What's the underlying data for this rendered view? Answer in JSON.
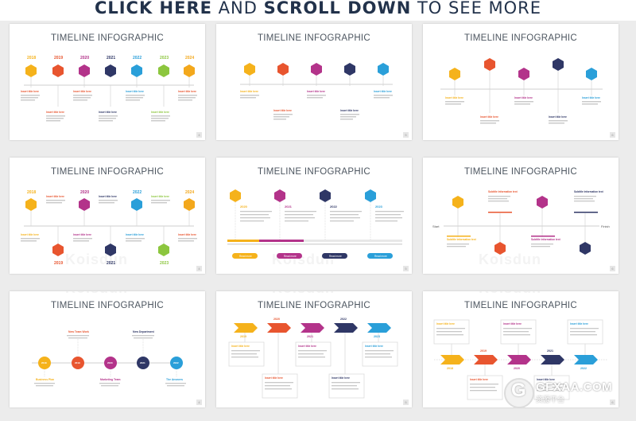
{
  "banner": {
    "part1": "CLICK HERE",
    "part2": " AND ",
    "part3": "SCROLL DOWN",
    "part4": " TO SEE MORE"
  },
  "slides": [
    {
      "title": "TIMELINE INFOGRAPHIC",
      "page": "4"
    },
    {
      "title": "TIMELINE INFOGRAPHIC",
      "page": "5"
    },
    {
      "title": "TIMELINE INFOGRAPHIC",
      "page": "6"
    },
    {
      "title": "TIMELINE INFOGRAPHIC",
      "page": "4"
    },
    {
      "title": "TIMELINE INFOGRAPHIC",
      "page": "5"
    },
    {
      "title": "TIMELINE INFOGRAPHIC",
      "page": "6"
    },
    {
      "title": "TIMELINE INFOGRAPHIC",
      "page": "4"
    },
    {
      "title": "TIMELINE INFOGRAPHIC",
      "page": "5"
    },
    {
      "title": "TIMELINE INFOGRAPHIC",
      "page": "6"
    }
  ],
  "colors": {
    "yellow": "#f5b21b",
    "orange": "#e8552f",
    "magenta": "#b3338a",
    "navy": "#2f3766",
    "blue": "#2a9fd9",
    "green": "#8cc63e",
    "gold": "#f3a81c",
    "label": "#e8552f"
  },
  "years": [
    "2018",
    "2019",
    "2020",
    "2021",
    "2022",
    "2023",
    "2024"
  ],
  "item_heading": "Insert title here",
  "slide5": {
    "years": [
      "2020",
      "2021",
      "2022",
      "2023"
    ],
    "button": "Read more"
  },
  "slide6": {
    "start": "Start",
    "finish": "Finish",
    "subtitle": "Subtitle Information text"
  },
  "slide7": {
    "top": [
      "New Team Work",
      "New Department"
    ],
    "bottom": [
      "Business Plan",
      "Marketing Team",
      "The Answers"
    ],
    "years": [
      "2018",
      "2019",
      "2020",
      "2021",
      "2022"
    ]
  },
  "slide8": {
    "years": [
      "2019",
      "2020",
      "2021",
      "2022",
      "2023"
    ]
  },
  "slide9": {
    "years": [
      "2018",
      "2019",
      "2020",
      "2021",
      "2022"
    ]
  },
  "watermark": "Koisdun",
  "logo": {
    "main": "GFXAA.COM",
    "sub": "资源平台"
  }
}
